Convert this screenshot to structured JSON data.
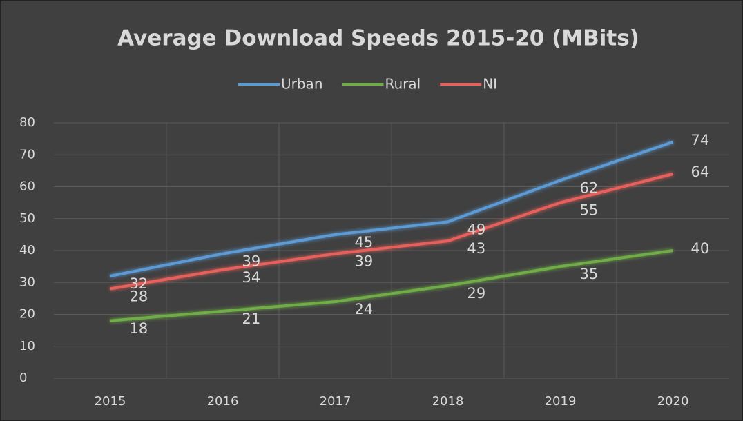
{
  "chart_data": {
    "type": "line",
    "title": "Average Download Speeds 2015-20 (MBits)",
    "categories": [
      "2015",
      "2016",
      "2017",
      "2018",
      "2019",
      "2020"
    ],
    "series": [
      {
        "name": "Urban",
        "color": "#5b9bd5",
        "values": [
          32,
          39,
          45,
          49,
          62,
          74
        ]
      },
      {
        "name": "Rural",
        "color": "#70ad47",
        "values": [
          18,
          21,
          24,
          29,
          35,
          40
        ]
      },
      {
        "name": "NI",
        "color": "#e8605c",
        "values": [
          28,
          34,
          39,
          43,
          55,
          64
        ]
      }
    ],
    "ylim": [
      0,
      80
    ],
    "yticks": [
      0,
      10,
      20,
      30,
      40,
      50,
      60,
      70,
      80
    ],
    "grid": true,
    "legend": "top"
  }
}
